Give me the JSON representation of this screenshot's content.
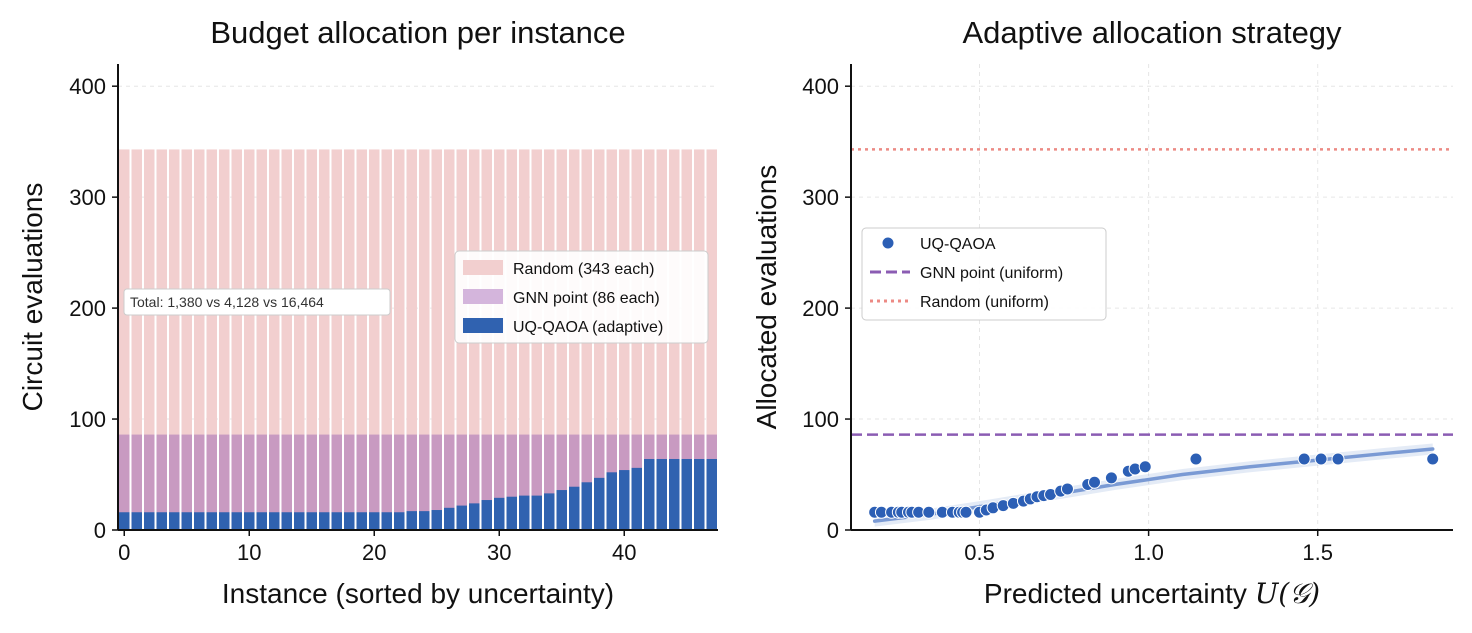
{
  "colors": {
    "random": "#f2cfcf",
    "gnn": "#c89ac1",
    "gnn_legend": "#d4b5dc",
    "uq": "#3062b0",
    "uq_point": "#2c5fb5",
    "fit": "#7a9ad4",
    "gnn_line": "#8b5cb3",
    "random_line": "#ec8a84"
  },
  "chart_data": [
    {
      "type": "bar",
      "title": "Budget allocation per instance",
      "xlabel": "Instance (sorted by uncertainty)",
      "ylabel": "Circuit evaluations",
      "xlim": [
        -0.5,
        47.5
      ],
      "ylim": [
        0,
        420
      ],
      "xticks": [
        0,
        10,
        20,
        30,
        40
      ],
      "yticks": [
        0,
        100,
        200,
        300,
        400
      ],
      "grid": true,
      "legend_position": "center-right",
      "x": [
        0,
        1,
        2,
        3,
        4,
        5,
        6,
        7,
        8,
        9,
        10,
        11,
        12,
        13,
        14,
        15,
        16,
        17,
        18,
        19,
        20,
        21,
        22,
        23,
        24,
        25,
        26,
        27,
        28,
        29,
        30,
        31,
        32,
        33,
        34,
        35,
        36,
        37,
        38,
        39,
        40,
        41,
        42,
        43,
        44,
        45,
        46,
        47
      ],
      "series": [
        {
          "name": "Random (343 each)",
          "key": "random",
          "values": [
            343,
            343,
            343,
            343,
            343,
            343,
            343,
            343,
            343,
            343,
            343,
            343,
            343,
            343,
            343,
            343,
            343,
            343,
            343,
            343,
            343,
            343,
            343,
            343,
            343,
            343,
            343,
            343,
            343,
            343,
            343,
            343,
            343,
            343,
            343,
            343,
            343,
            343,
            343,
            343,
            343,
            343,
            343,
            343,
            343,
            343,
            343,
            343
          ]
        },
        {
          "name": "GNN point (86 each)",
          "key": "gnn",
          "values": [
            86,
            86,
            86,
            86,
            86,
            86,
            86,
            86,
            86,
            86,
            86,
            86,
            86,
            86,
            86,
            86,
            86,
            86,
            86,
            86,
            86,
            86,
            86,
            86,
            86,
            86,
            86,
            86,
            86,
            86,
            86,
            86,
            86,
            86,
            86,
            86,
            86,
            86,
            86,
            86,
            86,
            86,
            86,
            86,
            86,
            86,
            86,
            86
          ]
        },
        {
          "name": "UQ-QAOA (adaptive)",
          "key": "uq",
          "values": [
            16,
            16,
            16,
            16,
            16,
            16,
            16,
            16,
            16,
            16,
            16,
            16,
            16,
            16,
            16,
            16,
            16,
            16,
            16,
            16,
            16,
            16,
            16,
            17,
            17,
            18,
            20,
            22,
            24,
            27,
            29,
            30,
            31,
            31,
            33,
            36,
            39,
            43,
            47,
            52,
            54,
            56,
            64,
            64,
            64,
            64,
            64,
            64
          ]
        }
      ],
      "annotation": "Total: 1,380 vs 4,128 vs 16,464"
    },
    {
      "type": "scatter",
      "title": "Adaptive allocation strategy",
      "xlabel_prefix": "Predicted uncertainty ",
      "xlabel_math": "U(𝒢)",
      "ylabel": "Allocated evaluations",
      "xlim": [
        0.12,
        1.9
      ],
      "ylim": [
        0,
        420
      ],
      "xticks": [
        0.5,
        1.0,
        1.5
      ],
      "xtick_labels": [
        "0.5",
        "1.0",
        "1.5"
      ],
      "yticks": [
        0,
        100,
        200,
        300,
        400
      ],
      "grid": true,
      "legend_position": "center-left",
      "series": [
        {
          "name": "UQ-QAOA",
          "key": "uq_point",
          "points": [
            [
              0.19,
              16
            ],
            [
              0.21,
              16
            ],
            [
              0.24,
              16
            ],
            [
              0.26,
              16
            ],
            [
              0.27,
              16
            ],
            [
              0.29,
              16
            ],
            [
              0.3,
              16
            ],
            [
              0.32,
              16
            ],
            [
              0.35,
              16
            ],
            [
              0.39,
              16
            ],
            [
              0.42,
              16
            ],
            [
              0.44,
              16
            ],
            [
              0.45,
              16
            ],
            [
              0.46,
              16
            ],
            [
              0.5,
              16
            ],
            [
              0.52,
              18
            ],
            [
              0.54,
              20
            ],
            [
              0.57,
              22
            ],
            [
              0.6,
              24
            ],
            [
              0.63,
              26
            ],
            [
              0.65,
              28
            ],
            [
              0.67,
              30
            ],
            [
              0.69,
              31
            ],
            [
              0.71,
              32
            ],
            [
              0.74,
              35
            ],
            [
              0.76,
              37
            ],
            [
              0.82,
              41
            ],
            [
              0.84,
              43
            ],
            [
              0.89,
              47
            ],
            [
              0.94,
              53
            ],
            [
              0.96,
              55
            ],
            [
              0.99,
              57
            ],
            [
              1.14,
              64
            ],
            [
              1.46,
              64
            ],
            [
              1.51,
              64
            ],
            [
              1.56,
              64
            ],
            [
              1.84,
              64
            ]
          ]
        }
      ],
      "fit_line": {
        "x": [
          0.19,
          0.35,
          0.5,
          0.7,
          0.9,
          1.1,
          1.3,
          1.5,
          1.7,
          1.84
        ],
        "y": [
          8,
          14,
          21,
          31,
          41,
          50,
          57,
          63,
          69,
          73
        ]
      },
      "hlines": [
        {
          "name": "GNN point (uniform)",
          "key": "gnn_line",
          "y": 86,
          "style": "dashed"
        },
        {
          "name": "Random (uniform)",
          "key": "random_line",
          "y": 343,
          "style": "dotted"
        }
      ]
    }
  ]
}
